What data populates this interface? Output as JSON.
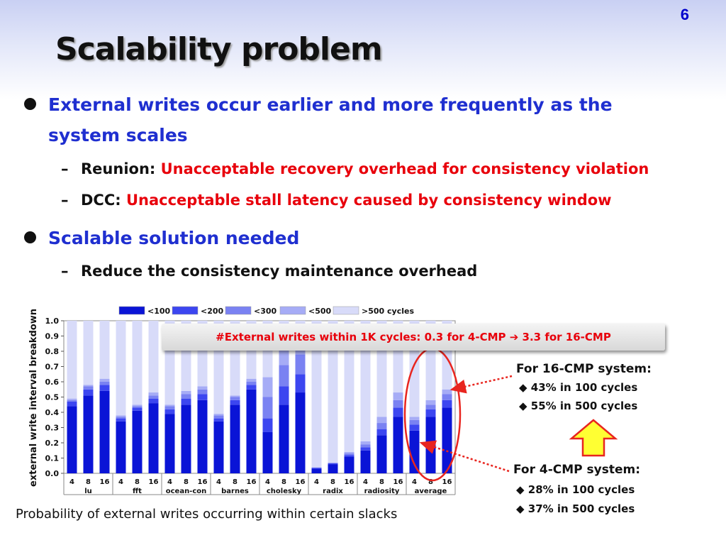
{
  "slide": {
    "number": "6",
    "title": "Scalability problem"
  },
  "bullets": {
    "b1_line1": "External writes occur earlier and more frequently as the",
    "b1_line2": "system scales",
    "b1_sub1_label": "Reunion:",
    "b1_sub1_text": "Unacceptable recovery overhead for consistency violation",
    "b1_sub2_label": "DCC:",
    "b1_sub2_text": "Unacceptable stall latency caused by consistency window",
    "b2": "Scalable solution needed",
    "b2_sub1": "Reduce the consistency maintenance overhead",
    "dash": "–"
  },
  "callout": {
    "prefix": "#External writes within 1K cycles: 0.3 for 4-CMP",
    "arrow": "➔",
    "suffix": "3.3 for 16-CMP"
  },
  "notes": {
    "cmp16_title": "For 16-CMP system:",
    "cmp16_items": [
      "43% in 100 cycles",
      "55% in 500 cycles"
    ],
    "cmp4_title": "For 4-CMP system:",
    "cmp4_items": [
      "28% in 100 cycles",
      "37% in 500 cycles"
    ],
    "bullet_glyph": "◆"
  },
  "caption": "Probability of external writes occurring within certain slacks",
  "colors": {
    "s100": "#0a14d6",
    "s200": "#3c46f0",
    "s300": "#7a82f2",
    "s500": "#a6acf6",
    "s500plus": "#d8dbf9",
    "callout_text": "#e8000b",
    "annotation_red": "#e8251f",
    "arrow_fill": "#ffff33"
  },
  "chart_data": {
    "type": "bar",
    "stacked": true,
    "ylabel": "external write interval breakdown",
    "ylim": [
      0,
      1.0
    ],
    "yticks": [
      "0.0",
      "0.1",
      "0.2",
      "0.3",
      "0.4",
      "0.5",
      "0.6",
      "0.7",
      "0.8",
      "0.9",
      "1.0"
    ],
    "legend": [
      "<100",
      "<200",
      "<300",
      "<500",
      ">500 cycles"
    ],
    "groups": [
      {
        "name": "lu",
        "bars": [
          {
            "label": "4",
            "values": [
              0.44,
              0.03,
              0.01,
              0.01,
              0.51
            ]
          },
          {
            "label": "8",
            "values": [
              0.51,
              0.04,
              0.02,
              0.01,
              0.42
            ]
          },
          {
            "label": "16",
            "values": [
              0.54,
              0.04,
              0.02,
              0.02,
              0.38
            ]
          }
        ]
      },
      {
        "name": "fft",
        "bars": [
          {
            "label": "4",
            "values": [
              0.34,
              0.02,
              0.01,
              0.01,
              0.62
            ]
          },
          {
            "label": "8",
            "values": [
              0.41,
              0.02,
              0.01,
              0.01,
              0.55
            ]
          },
          {
            "label": "16",
            "values": [
              0.46,
              0.03,
              0.02,
              0.02,
              0.47
            ]
          }
        ]
      },
      {
        "name": "ocean-con",
        "bars": [
          {
            "label": "4",
            "values": [
              0.39,
              0.03,
              0.02,
              0.01,
              0.55
            ]
          },
          {
            "label": "8",
            "values": [
              0.45,
              0.04,
              0.03,
              0.02,
              0.46
            ]
          },
          {
            "label": "16",
            "values": [
              0.48,
              0.04,
              0.03,
              0.02,
              0.43
            ]
          }
        ]
      },
      {
        "name": "barnes",
        "bars": [
          {
            "label": "4",
            "values": [
              0.34,
              0.02,
              0.02,
              0.01,
              0.61
            ]
          },
          {
            "label": "8",
            "values": [
              0.45,
              0.03,
              0.02,
              0.01,
              0.49
            ]
          },
          {
            "label": "16",
            "values": [
              0.55,
              0.03,
              0.02,
              0.02,
              0.38
            ]
          }
        ]
      },
      {
        "name": "cholesky",
        "bars": [
          {
            "label": "4",
            "values": [
              0.27,
              0.09,
              0.14,
              0.13,
              0.37
            ]
          },
          {
            "label": "8",
            "values": [
              0.45,
              0.12,
              0.14,
              0.14,
              0.15
            ]
          },
          {
            "label": "16",
            "values": [
              0.53,
              0.12,
              0.13,
              0.13,
              0.09
            ]
          }
        ]
      },
      {
        "name": "radix",
        "bars": [
          {
            "label": "4",
            "values": [
              0.03,
              0.005,
              0.003,
              0.002,
              0.96
            ]
          },
          {
            "label": "8",
            "values": [
              0.06,
              0.005,
              0.003,
              0.002,
              0.93
            ]
          },
          {
            "label": "16",
            "values": [
              0.11,
              0.01,
              0.01,
              0.01,
              0.86
            ]
          }
        ]
      },
      {
        "name": "radiosity",
        "bars": [
          {
            "label": "4",
            "values": [
              0.15,
              0.02,
              0.02,
              0.02,
              0.79
            ]
          },
          {
            "label": "8",
            "values": [
              0.25,
              0.04,
              0.04,
              0.04,
              0.63
            ]
          },
          {
            "label": "16",
            "values": [
              0.37,
              0.06,
              0.05,
              0.05,
              0.47
            ]
          }
        ]
      },
      {
        "name": "average",
        "bars": [
          {
            "label": "4",
            "values": [
              0.28,
              0.04,
              0.03,
              0.02,
              0.63
            ]
          },
          {
            "label": "8",
            "values": [
              0.37,
              0.05,
              0.03,
              0.03,
              0.52
            ]
          },
          {
            "label": "16",
            "values": [
              0.43,
              0.05,
              0.04,
              0.03,
              0.45
            ]
          }
        ]
      }
    ]
  }
}
